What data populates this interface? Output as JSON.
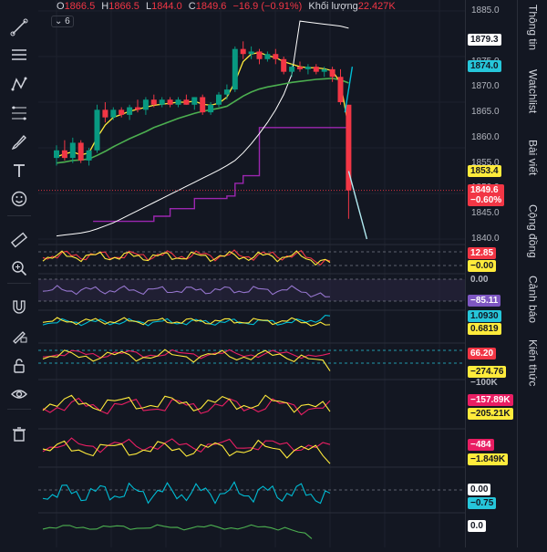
{
  "header": {
    "o_label": "O",
    "o_value": "1866.5",
    "h_label": "H",
    "h_value": "1866.5",
    "l_label": "L",
    "l_value": "1844.0",
    "c_label": "C",
    "c_value": "1849.6",
    "change": "−16.9 (−0.91%)",
    "volume_label": "Khối lượng",
    "volume_value": "22.427K",
    "indicator_count": "6"
  },
  "toolbar": {
    "items": [
      "trendline-icon",
      "horizontal-lines-icon",
      "path-icon",
      "fib-icon",
      "brush-icon",
      "text-icon",
      "emoji-icon",
      "ruler-icon",
      "zoom-icon",
      "magnet-icon",
      "lock-draw-icon",
      "lock-icon",
      "eye-icon",
      "trash-icon"
    ]
  },
  "sidebar": {
    "tabs": [
      "Thông tin",
      "Watchlist",
      "Bài viết",
      "Cộng đồng",
      "Cảnh báo",
      "Kiến thức"
    ]
  },
  "colors": {
    "bull": "#089981",
    "bear": "#f23645",
    "ma_yellow": "#ffeb3b",
    "ma_green": "#4caf50",
    "ma_white": "#ffffff",
    "ma_purple": "#9c27b0",
    "cyan": "#00bcd4",
    "pink": "#e91e63"
  },
  "price_axis": {
    "ticks": [
      "1885.0",
      "1875.0",
      "1870.0",
      "1865.0",
      "1860.0",
      "1855.0",
      "1850.0",
      "1845.0",
      "1840.0"
    ],
    "tags": [
      {
        "text": "1879.3",
        "bg": "#ffffff",
        "fg": "#131722"
      },
      {
        "text": "1874.0",
        "bg": "#26c6da",
        "fg": "#131722"
      },
      {
        "text": "1853.4",
        "bg": "#ffeb3b",
        "fg": "#131722"
      },
      {
        "text": "1849.6",
        "text2": "−0.60%",
        "bg": "#f23645",
        "fg": "#ffffff"
      }
    ],
    "panel_tags": [
      {
        "text": "12.85",
        "bg": "#f23645",
        "fg": "#ffffff"
      },
      {
        "text": "−0.00",
        "bg": "#ffeb3b",
        "fg": "#131722"
      },
      {
        "text": "0.00",
        "bg": "none",
        "fg": "#b2b5be"
      },
      {
        "text": "−85.11",
        "bg": "#7e57c2",
        "fg": "#ffffff"
      },
      {
        "text": "1.0930",
        "bg": "#26c6da",
        "fg": "#131722"
      },
      {
        "text": "0.6819",
        "bg": "#ffeb3b",
        "fg": "#131722"
      },
      {
        "text": "66.20",
        "bg": "#f23645",
        "fg": "#ffffff"
      },
      {
        "text": "−274.76",
        "bg": "#ffeb3b",
        "fg": "#131722"
      },
      {
        "text": "−100K",
        "bg": "none",
        "fg": "#b2b5be"
      },
      {
        "text": "−157.89K",
        "bg": "#e91e63",
        "fg": "#ffffff"
      },
      {
        "text": "−205.21K",
        "bg": "#ffeb3b",
        "fg": "#131722"
      },
      {
        "text": "−484",
        "bg": "#e91e63",
        "fg": "#ffffff"
      },
      {
        "text": "−1.849K",
        "bg": "#ffeb3b",
        "fg": "#131722"
      },
      {
        "text": "0.00",
        "bg": "#ffffff",
        "fg": "#131722"
      },
      {
        "text": "−0.75",
        "bg": "#26c6da",
        "fg": "#131722"
      },
      {
        "text": "0.0",
        "bg": "#ffffff",
        "fg": "#131722"
      }
    ]
  },
  "chart_data": {
    "type": "candlestick",
    "ylim": [
      1840,
      1885
    ],
    "candles": [
      {
        "o": 1856.0,
        "h": 1858.5,
        "l": 1854.5,
        "c": 1857.5
      },
      {
        "o": 1857.5,
        "h": 1859.5,
        "l": 1855.5,
        "c": 1856.0
      },
      {
        "o": 1856.0,
        "h": 1860.0,
        "l": 1855.0,
        "c": 1859.0
      },
      {
        "o": 1859.0,
        "h": 1859.5,
        "l": 1855.0,
        "c": 1855.5
      },
      {
        "o": 1855.5,
        "h": 1858.0,
        "l": 1854.5,
        "c": 1857.5
      },
      {
        "o": 1857.5,
        "h": 1866.5,
        "l": 1857.0,
        "c": 1865.5
      },
      {
        "o": 1865.5,
        "h": 1867.0,
        "l": 1863.0,
        "c": 1864.0
      },
      {
        "o": 1864.0,
        "h": 1866.0,
        "l": 1863.5,
        "c": 1865.5
      },
      {
        "o": 1865.5,
        "h": 1866.0,
        "l": 1864.0,
        "c": 1864.5
      },
      {
        "o": 1864.5,
        "h": 1866.5,
        "l": 1863.5,
        "c": 1866.0
      },
      {
        "o": 1866.0,
        "h": 1867.5,
        "l": 1865.0,
        "c": 1865.5
      },
      {
        "o": 1865.5,
        "h": 1868.0,
        "l": 1864.5,
        "c": 1867.5
      },
      {
        "o": 1867.5,
        "h": 1868.5,
        "l": 1866.0,
        "c": 1866.5
      },
      {
        "o": 1866.5,
        "h": 1868.0,
        "l": 1866.0,
        "c": 1867.5
      },
      {
        "o": 1867.5,
        "h": 1868.0,
        "l": 1866.0,
        "c": 1866.5
      },
      {
        "o": 1866.5,
        "h": 1868.0,
        "l": 1866.0,
        "c": 1867.5
      },
      {
        "o": 1867.5,
        "h": 1868.5,
        "l": 1866.5,
        "c": 1866.5
      },
      {
        "o": 1866.5,
        "h": 1868.0,
        "l": 1865.5,
        "c": 1868.0
      },
      {
        "o": 1868.0,
        "h": 1868.5,
        "l": 1864.5,
        "c": 1865.0
      },
      {
        "o": 1865.0,
        "h": 1867.0,
        "l": 1864.5,
        "c": 1866.5
      },
      {
        "o": 1866.5,
        "h": 1869.0,
        "l": 1866.0,
        "c": 1868.5
      },
      {
        "o": 1868.5,
        "h": 1870.5,
        "l": 1867.5,
        "c": 1869.5
      },
      {
        "o": 1869.5,
        "h": 1878.0,
        "l": 1869.0,
        "c": 1877.5
      },
      {
        "o": 1877.5,
        "h": 1879.0,
        "l": 1875.5,
        "c": 1876.5
      },
      {
        "o": 1876.5,
        "h": 1878.0,
        "l": 1875.5,
        "c": 1877.0
      },
      {
        "o": 1877.0,
        "h": 1877.5,
        "l": 1874.5,
        "c": 1875.5
      },
      {
        "o": 1875.5,
        "h": 1877.0,
        "l": 1875.0,
        "c": 1876.5
      },
      {
        "o": 1876.5,
        "h": 1877.5,
        "l": 1874.5,
        "c": 1875.5
      },
      {
        "o": 1875.5,
        "h": 1876.0,
        "l": 1872.5,
        "c": 1873.0
      },
      {
        "o": 1873.0,
        "h": 1874.5,
        "l": 1872.0,
        "c": 1874.0
      },
      {
        "o": 1874.0,
        "h": 1875.0,
        "l": 1873.0,
        "c": 1873.5
      },
      {
        "o": 1873.5,
        "h": 1874.5,
        "l": 1872.5,
        "c": 1874.0
      },
      {
        "o": 1874.0,
        "h": 1874.5,
        "l": 1872.5,
        "c": 1873.0
      },
      {
        "o": 1873.0,
        "h": 1874.0,
        "l": 1872.0,
        "c": 1873.5
      },
      {
        "o": 1873.5,
        "h": 1874.0,
        "l": 1871.0,
        "c": 1872.0
      },
      {
        "o": 1872.0,
        "h": 1873.5,
        "l": 1866.5,
        "c": 1867.0
      },
      {
        "o": 1866.5,
        "h": 1866.5,
        "l": 1844.0,
        "c": 1849.6
      }
    ],
    "ma_yellow": [
      1856.2,
      1856.8,
      1857.2,
      1856.6,
      1857.0,
      1860.0,
      1862.5,
      1864.0,
      1864.6,
      1865.2,
      1865.6,
      1866.0,
      1866.4,
      1866.6,
      1866.8,
      1867.0,
      1867.0,
      1867.2,
      1866.6,
      1866.4,
      1866.8,
      1868.0,
      1871.0,
      1875.0,
      1876.5,
      1876.8,
      1876.2,
      1875.8,
      1875.0,
      1874.5,
      1874.0,
      1873.8,
      1873.8,
      1873.6,
      1873.2,
      1870.8,
      1862.0
    ],
    "ma_green": [
      1855.0,
      1855.2,
      1855.5,
      1855.6,
      1855.8,
      1856.5,
      1857.3,
      1858.2,
      1859.0,
      1859.8,
      1860.5,
      1861.2,
      1862.0,
      1862.6,
      1863.2,
      1863.8,
      1864.3,
      1864.8,
      1865.2,
      1865.5,
      1865.8,
      1866.2,
      1867.2,
      1868.2,
      1869.0,
      1869.6,
      1870.0,
      1870.3,
      1870.6,
      1870.9,
      1871.1,
      1871.3,
      1871.5,
      1871.6,
      1871.7,
      1871.4,
      1870.8
    ],
    "ma_white": [
      1840.6,
      1840.8,
      1841.0,
      1841.2,
      1841.5,
      1842.0,
      1842.6,
      1843.2,
      1844.0,
      1844.8,
      1845.6,
      1846.4,
      1847.2,
      1848.0,
      1848.8,
      1849.6,
      1850.4,
      1851.2,
      1852.0,
      1852.8,
      1853.6,
      1854.5,
      1855.5,
      1857.0,
      1858.8,
      1860.8,
      1863.0,
      1865.5,
      1868.5,
      1872.5,
      1883.0,
      1882.8,
      1882.6,
      1882.4,
      1882.2,
      1882.0,
      1881.6
    ],
    "ma_purple": [
      null,
      null,
      null,
      null,
      null,
      null,
      null,
      null,
      null,
      1843.5,
      1843.5,
      1843.5,
      1844.5,
      1844.5,
      1846.0,
      1846.0,
      1846.0,
      1848.0,
      1848.0,
      1848.0,
      1848.0,
      1848.5,
      1851.0,
      1852.5,
      1852.5,
      1862.0,
      1862.0,
      1862.0,
      1862.0,
      1862.0,
      1862.0,
      1862.0,
      1862.0,
      1862.0,
      1862.0,
      1862.0,
      1862.0
    ],
    "white_tail": [
      1853.4,
      1840.0
    ],
    "cyan_tail": [
      1865.0,
      1874.0
    ]
  }
}
